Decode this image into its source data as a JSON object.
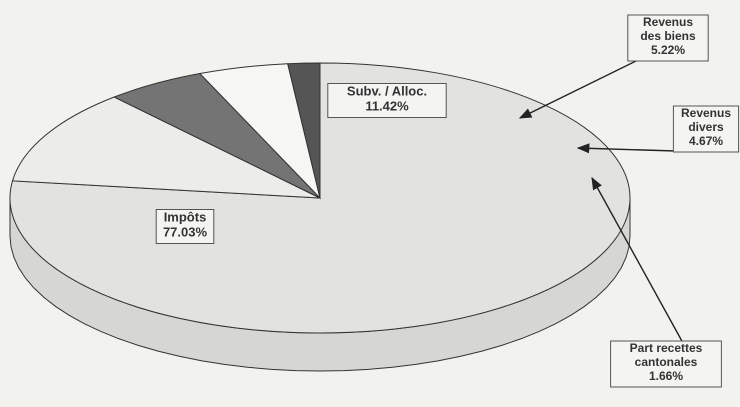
{
  "chart_data": {
    "type": "pie",
    "style": "3d",
    "slices": [
      {
        "label": [
          "Impôts"
        ],
        "percent_text": "77.03%",
        "value": 77.03,
        "color": "#e2e2e0",
        "label_style": "boxed-inside"
      },
      {
        "label": [
          "Subv. / Alloc."
        ],
        "percent_text": "11.42%",
        "value": 11.42,
        "color": "#ececea",
        "label_style": "boxed-inside"
      },
      {
        "label": [
          "Revenus",
          "des biens"
        ],
        "percent_text": "5.22%",
        "value": 5.22,
        "color": "#747474",
        "label_style": "callout"
      },
      {
        "label": [
          "Revenus",
          "divers"
        ],
        "percent_text": "4.67%",
        "value": 4.67,
        "color": "#f6f6f4",
        "label_style": "callout"
      },
      {
        "label": [
          "Part recettes",
          "cantonales"
        ],
        "percent_text": "1.66%",
        "value": 1.66,
        "color": "#555555",
        "label_style": "callout"
      }
    ]
  }
}
